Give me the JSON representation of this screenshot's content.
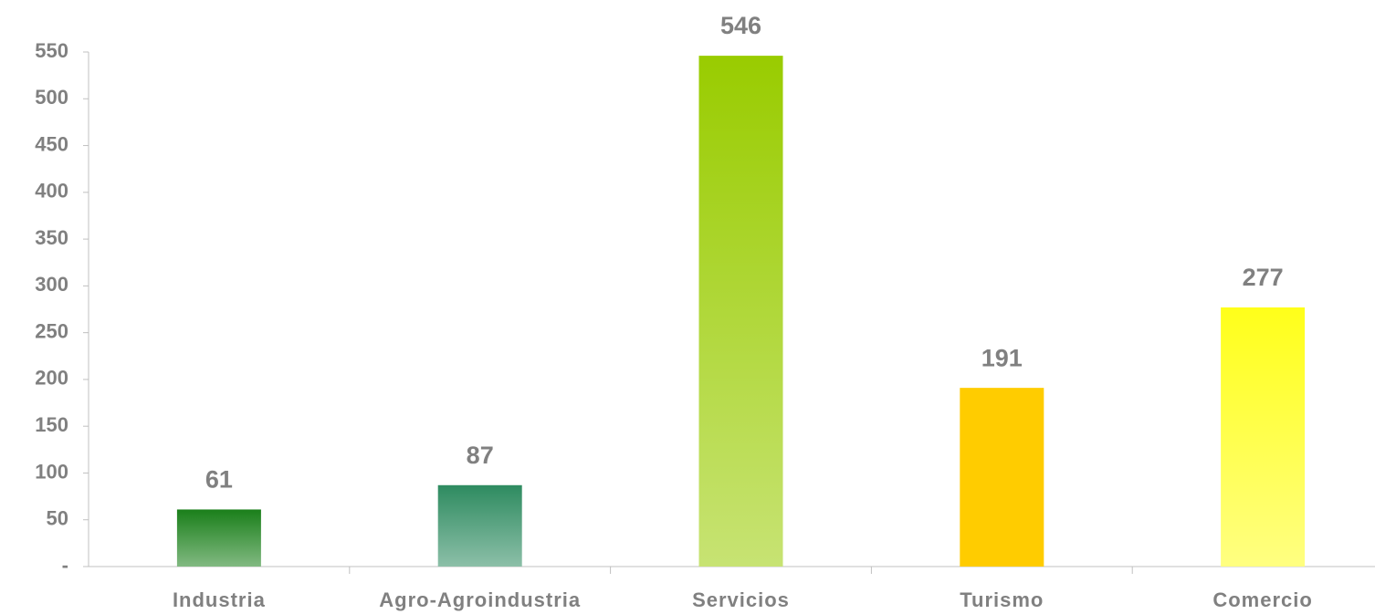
{
  "chart_data": {
    "type": "bar",
    "categories": [
      "Industria",
      "Agro-Agroindustria",
      "Servicios",
      "Turismo",
      "Comercio"
    ],
    "values": [
      61,
      87,
      546,
      191,
      277
    ],
    "colors": [
      "#1a7f1a",
      "#2e8b60",
      "#99cc00",
      "#ffcc00",
      "#ffff1a"
    ],
    "ylim": [
      0,
      550
    ],
    "yticks": [
      {
        "value": 0,
        "label": "-"
      },
      50,
      100,
      150,
      200,
      250,
      300,
      350,
      400,
      450,
      500,
      550
    ],
    "grid": false
  }
}
